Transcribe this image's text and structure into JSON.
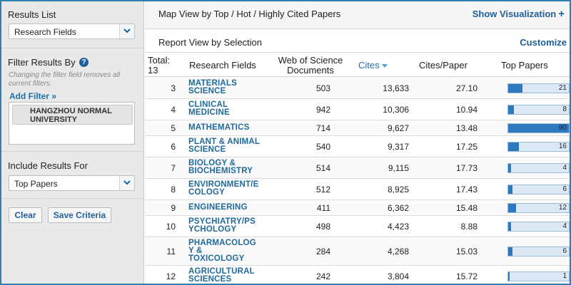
{
  "sidebar": {
    "results_list_title": "Results List",
    "results_list_value": "Research Fields",
    "filter_title": "Filter Results By",
    "filter_note": "Changing the filter field removes all current filters.",
    "add_filter": "Add Filter »",
    "filter_chip": "HANGZHOU NORMAL UNIVERSITY",
    "include_title": "Include Results For",
    "include_value": "Top Papers",
    "clear_label": "Clear",
    "save_label": "Save Criteria"
  },
  "main": {
    "map_title": "Map View by Top / Hot / Highly Cited Papers",
    "show_visualization": "Show Visualization",
    "report_title": "Report View by Selection",
    "customize": "Customize"
  },
  "table": {
    "total_label": "Total:",
    "total_value": "13",
    "headers": {
      "field": "Research Fields",
      "docs_line1": "Web of Science",
      "docs_line2": "Documents",
      "cites": "Cites",
      "cites_per_paper": "Cites/Paper",
      "top_papers": "Top Papers"
    },
    "max_top_papers": 90,
    "rows": [
      {
        "rank": "3",
        "field": [
          "MATERIALS",
          "SCIENCE"
        ],
        "docs": "503",
        "cites": "13,633",
        "cpp": "27.10",
        "top": 21
      },
      {
        "rank": "4",
        "field": [
          "CLINICAL",
          "MEDICINE"
        ],
        "docs": "942",
        "cites": "10,306",
        "cpp": "10.94",
        "top": 8
      },
      {
        "rank": "5",
        "field": [
          "MATHEMATICS"
        ],
        "docs": "714",
        "cites": "9,627",
        "cpp": "13.48",
        "top": 90
      },
      {
        "rank": "6",
        "field": [
          "PLANT & ANIMAL",
          "SCIENCE"
        ],
        "docs": "540",
        "cites": "9,317",
        "cpp": "17.25",
        "top": 16
      },
      {
        "rank": "7",
        "field": [
          "BIOLOGY &",
          "BIOCHEMISTRY"
        ],
        "docs": "514",
        "cites": "9,115",
        "cpp": "17.73",
        "top": 4
      },
      {
        "rank": "8",
        "field": [
          "ENVIRONMENT/E",
          "COLOGY"
        ],
        "docs": "512",
        "cites": "8,925",
        "cpp": "17.43",
        "top": 6
      },
      {
        "rank": "9",
        "field": [
          "ENGINEERING"
        ],
        "docs": "411",
        "cites": "6,362",
        "cpp": "15.48",
        "top": 12
      },
      {
        "rank": "10",
        "field": [
          "PSYCHIATRY/PS",
          "YCHOLOGY"
        ],
        "docs": "498",
        "cites": "4,423",
        "cpp": "8.88",
        "top": 4
      },
      {
        "rank": "11",
        "field": [
          "PHARMACOLOG",
          "Y &",
          "TOXICOLOGY"
        ],
        "docs": "284",
        "cites": "4,268",
        "cpp": "15.03",
        "top": 6
      },
      {
        "rank": "12",
        "field": [
          "AGRICULTURAL",
          "SCIENCES"
        ],
        "docs": "242",
        "cites": "3,804",
        "cpp": "15.72",
        "top": 1
      }
    ]
  },
  "colors": {
    "accent": "#1f5f99",
    "link": "#1f6a9c",
    "bar_fill": "#2e78c0",
    "bar_bg": "#dce9f5"
  },
  "icons": {
    "help": "question-icon",
    "dropdown": "chevron-down-icon",
    "sort": "sort-desc-icon",
    "plus": "plus-icon"
  }
}
